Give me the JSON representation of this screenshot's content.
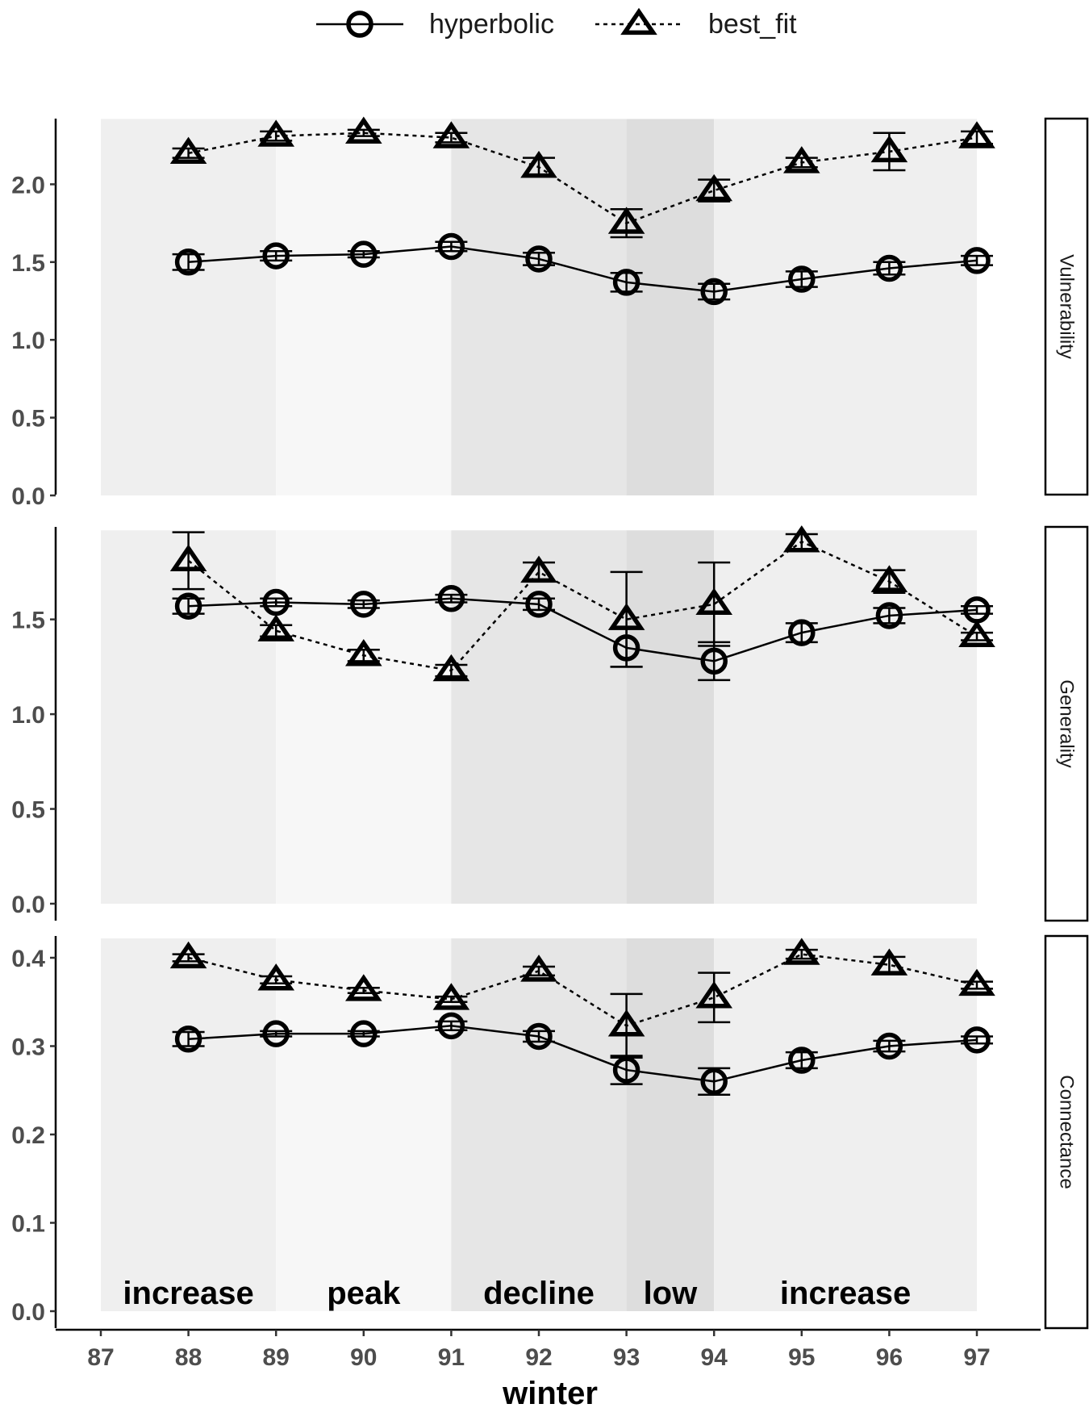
{
  "chart_data": {
    "type": "line",
    "xlabel": "winter",
    "x_ticks": [
      "87",
      "88",
      "89",
      "90",
      "91",
      "92",
      "93",
      "94",
      "95",
      "96",
      "97"
    ],
    "x_range": [
      87,
      97
    ],
    "legend": {
      "placement": "top-center",
      "entries": [
        {
          "name": "hyperbolic",
          "marker": "circle",
          "line": "solid"
        },
        {
          "name": "best_fit",
          "marker": "triangle",
          "line": "dotted"
        }
      ]
    },
    "phases": [
      {
        "label": "increase",
        "start": 87,
        "end": 89,
        "shade": "#efefef"
      },
      {
        "label": "peak",
        "start": 89,
        "end": 91,
        "shade": "#f7f7f7"
      },
      {
        "label": "decline",
        "start": 91,
        "end": 93,
        "shade": "#e6e6e6"
      },
      {
        "label": "low",
        "start": 93,
        "end": 94,
        "shade": "#dddddd"
      },
      {
        "label": "increase",
        "start": 94,
        "end": 97,
        "shade": "#efefef"
      }
    ],
    "grid": false,
    "panels": [
      {
        "strip": "Vulnerability",
        "ylim": [
          0,
          2.42
        ],
        "y_ticks": [
          "0.0",
          "0.5",
          "1.0",
          "1.5",
          "2.0"
        ],
        "x": [
          88,
          89,
          90,
          91,
          92,
          93,
          94,
          95,
          96,
          97
        ],
        "series": [
          {
            "name": "hyperbolic",
            "values": [
              1.5,
              1.54,
              1.55,
              1.6,
              1.52,
              1.37,
              1.31,
              1.39,
              1.46,
              1.51
            ],
            "errors": [
              0.05,
              0.03,
              0.02,
              0.03,
              0.04,
              0.06,
              0.05,
              0.05,
              0.04,
              0.03
            ]
          },
          {
            "name": "best_fit",
            "values": [
              2.2,
              2.31,
              2.33,
              2.3,
              2.11,
              1.75,
              1.96,
              2.14,
              2.21,
              2.3
            ],
            "errors": [
              0.03,
              0.03,
              0.02,
              0.03,
              0.06,
              0.09,
              0.07,
              0.03,
              0.12,
              0.04
            ]
          }
        ]
      },
      {
        "strip": "Generality",
        "ylim": [
          0,
          1.97
        ],
        "y_ticks": [
          "0.0",
          "0.5",
          "1.0",
          "1.5"
        ],
        "x": [
          88,
          89,
          90,
          91,
          92,
          93,
          94,
          95,
          96,
          97
        ],
        "series": [
          {
            "name": "hyperbolic",
            "values": [
              1.57,
              1.59,
              1.58,
              1.61,
              1.58,
              1.35,
              1.28,
              1.43,
              1.52,
              1.55
            ],
            "errors": [
              0.04,
              0.02,
              0.02,
              0.02,
              0.03,
              0.1,
              0.1,
              0.05,
              0.04,
              0.02
            ]
          },
          {
            "name": "best_fit",
            "values": [
              1.81,
              1.44,
              1.31,
              1.23,
              1.75,
              1.5,
              1.58,
              1.91,
              1.7,
              1.41
            ],
            "errors": [
              0.15,
              0.03,
              0.03,
              0.03,
              0.05,
              0.25,
              0.22,
              0.04,
              0.06,
              0.02
            ]
          }
        ]
      },
      {
        "strip": "Connectance",
        "ylim": [
          0,
          0.422
        ],
        "y_ticks": [
          "0.0",
          "0.1",
          "0.2",
          "0.3",
          "0.4"
        ],
        "x": [
          88,
          89,
          90,
          91,
          92,
          93,
          94,
          95,
          96,
          97
        ],
        "series": [
          {
            "name": "hyperbolic",
            "values": [
              0.308,
              0.314,
              0.314,
              0.323,
              0.311,
              0.273,
              0.26,
              0.284,
              0.3,
              0.307
            ],
            "errors": [
              0.008,
              0.003,
              0.003,
              0.005,
              0.006,
              0.016,
              0.015,
              0.009,
              0.006,
              0.004
            ]
          },
          {
            "name": "best_fit",
            "values": [
              0.4,
              0.375,
              0.363,
              0.353,
              0.385,
              0.323,
              0.355,
              0.404,
              0.392,
              0.369
            ],
            "errors": [
              0.004,
              0.004,
              0.003,
              0.003,
              0.005,
              0.036,
              0.028,
              0.005,
              0.009,
              0.004
            ]
          }
        ]
      }
    ]
  }
}
